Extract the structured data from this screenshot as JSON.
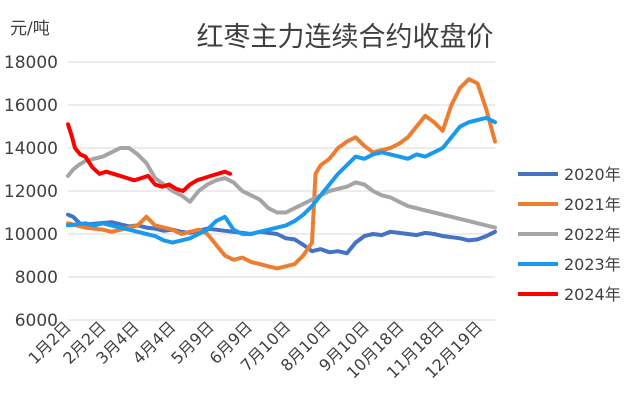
{
  "chart_data": {
    "type": "line",
    "title": "红枣主力连续合约收盘价",
    "unit": "元/吨",
    "ylim": [
      6000,
      18000
    ],
    "yticks": [
      6000,
      8000,
      10000,
      12000,
      14000,
      16000,
      18000
    ],
    "ytick_labels": [
      "6000",
      "8000",
      "10000",
      "12000",
      "14000",
      "16000",
      "18000"
    ],
    "x_tick_labels": [
      "1月2日",
      "2月2日",
      "3月4日",
      "4月4日",
      "5月9日",
      "6月9日",
      "7月10日",
      "8月10日",
      "9月10日",
      "10月18日",
      "11月18日",
      "12月19日"
    ],
    "x_tick_positions": [
      0,
      20,
      39,
      60,
      82,
      104,
      126,
      149,
      171,
      191,
      214,
      236
    ],
    "x_range": [
      0,
      245
    ],
    "grid": true,
    "legend_position": "right",
    "series": [
      {
        "name": "2020年",
        "color": "#4472C4",
        "x": [
          0,
          3,
          8,
          12,
          18,
          25,
          30,
          35,
          40,
          45,
          50,
          55,
          60,
          65,
          70,
          75,
          80,
          85,
          90,
          95,
          100,
          105,
          110,
          115,
          120,
          125,
          130,
          135,
          140,
          145,
          150,
          155,
          160,
          165,
          170,
          175,
          180,
          185,
          190,
          195,
          200,
          205,
          210,
          215,
          220,
          225,
          230,
          235,
          240,
          245
        ],
        "values": [
          10900,
          10800,
          10400,
          10450,
          10500,
          10550,
          10450,
          10350,
          10400,
          10300,
          10250,
          10150,
          10200,
          10100,
          10050,
          10150,
          10250,
          10200,
          10150,
          10100,
          10050,
          10000,
          10100,
          10050,
          10000,
          9800,
          9750,
          9500,
          9200,
          9300,
          9150,
          9200,
          9100,
          9600,
          9900,
          10000,
          9950,
          10100,
          10050,
          10000,
          9950,
          10050,
          10000,
          9900,
          9850,
          9800,
          9700,
          9750,
          9900,
          10100
        ]
      },
      {
        "name": "2021年",
        "color": "#ED7D31",
        "x": [
          0,
          5,
          10,
          15,
          20,
          25,
          30,
          35,
          40,
          45,
          50,
          55,
          60,
          65,
          70,
          75,
          80,
          85,
          90,
          95,
          100,
          105,
          110,
          115,
          120,
          125,
          130,
          135,
          140,
          142,
          145,
          150,
          155,
          160,
          165,
          170,
          175,
          180,
          185,
          190,
          195,
          200,
          205,
          210,
          215,
          220,
          225,
          230,
          235,
          240,
          245
        ],
        "values": [
          10500,
          10400,
          10300,
          10250,
          10200,
          10100,
          10200,
          10300,
          10400,
          10800,
          10400,
          10300,
          10200,
          10000,
          10100,
          10200,
          10000,
          9500,
          9000,
          8800,
          8900,
          8700,
          8600,
          8500,
          8400,
          8500,
          8600,
          9000,
          9600,
          12800,
          13200,
          13500,
          14000,
          14300,
          14500,
          14100,
          13800,
          13900,
          14000,
          14200,
          14500,
          15000,
          15500,
          15200,
          14800,
          16000,
          16800,
          17200,
          17000,
          15800,
          14300
        ]
      },
      {
        "name": "2022年",
        "color": "#A5A5A5",
        "x": [
          0,
          3,
          6,
          10,
          15,
          20,
          25,
          30,
          35,
          40,
          45,
          50,
          55,
          60,
          65,
          70,
          75,
          80,
          85,
          90,
          95,
          100,
          105,
          110,
          115,
          120,
          125,
          130,
          135,
          140,
          145,
          150,
          155,
          160,
          165,
          170,
          175,
          180,
          185,
          190,
          195,
          200,
          205,
          210,
          215,
          220,
          225,
          230,
          235,
          240,
          245
        ],
        "values": [
          12700,
          13000,
          13200,
          13400,
          13500,
          13600,
          13800,
          14000,
          14000,
          13700,
          13300,
          12600,
          12300,
          12000,
          11800,
          11500,
          12000,
          12300,
          12500,
          12600,
          12400,
          12000,
          11800,
          11600,
          11200,
          11000,
          11000,
          11200,
          11400,
          11600,
          11800,
          12000,
          12100,
          12200,
          12400,
          12300,
          12000,
          11800,
          11700,
          11500,
          11300,
          11200,
          11100,
          11000,
          10900,
          10800,
          10700,
          10600,
          10500,
          10400,
          10300
        ]
      },
      {
        "name": "2023年",
        "color": "#1A9AEF",
        "x": [
          0,
          5,
          10,
          15,
          20,
          25,
          30,
          35,
          40,
          45,
          50,
          55,
          60,
          65,
          70,
          75,
          80,
          85,
          90,
          95,
          100,
          105,
          110,
          115,
          120,
          125,
          130,
          135,
          140,
          145,
          150,
          155,
          160,
          165,
          170,
          175,
          180,
          185,
          190,
          195,
          200,
          205,
          210,
          215,
          220,
          225,
          230,
          235,
          240,
          245
        ],
        "values": [
          10400,
          10450,
          10500,
          10400,
          10500,
          10400,
          10300,
          10200,
          10100,
          10000,
          9900,
          9700,
          9600,
          9700,
          9800,
          10000,
          10200,
          10600,
          10800,
          10200,
          10000,
          10000,
          10100,
          10200,
          10300,
          10400,
          10600,
          10900,
          11300,
          11800,
          12300,
          12800,
          13200,
          13600,
          13500,
          13700,
          13800,
          13700,
          13600,
          13500,
          13700,
          13600,
          13800,
          14000,
          14500,
          15000,
          15200,
          15300,
          15400,
          15200
        ]
      },
      {
        "name": "2024年",
        "color": "#FF0000",
        "x": [
          0,
          2,
          4,
          7,
          10,
          14,
          18,
          22,
          26,
          30,
          34,
          38,
          42,
          46,
          50,
          54,
          58,
          62,
          66,
          70,
          74,
          78,
          82,
          86,
          90,
          93
        ],
        "values": [
          15100,
          14600,
          14000,
          13700,
          13600,
          13100,
          12800,
          12900,
          12800,
          12700,
          12600,
          12500,
          12600,
          12700,
          12300,
          12200,
          12300,
          12100,
          12000,
          12300,
          12500,
          12600,
          12700,
          12800,
          12900,
          12800
        ]
      }
    ]
  }
}
